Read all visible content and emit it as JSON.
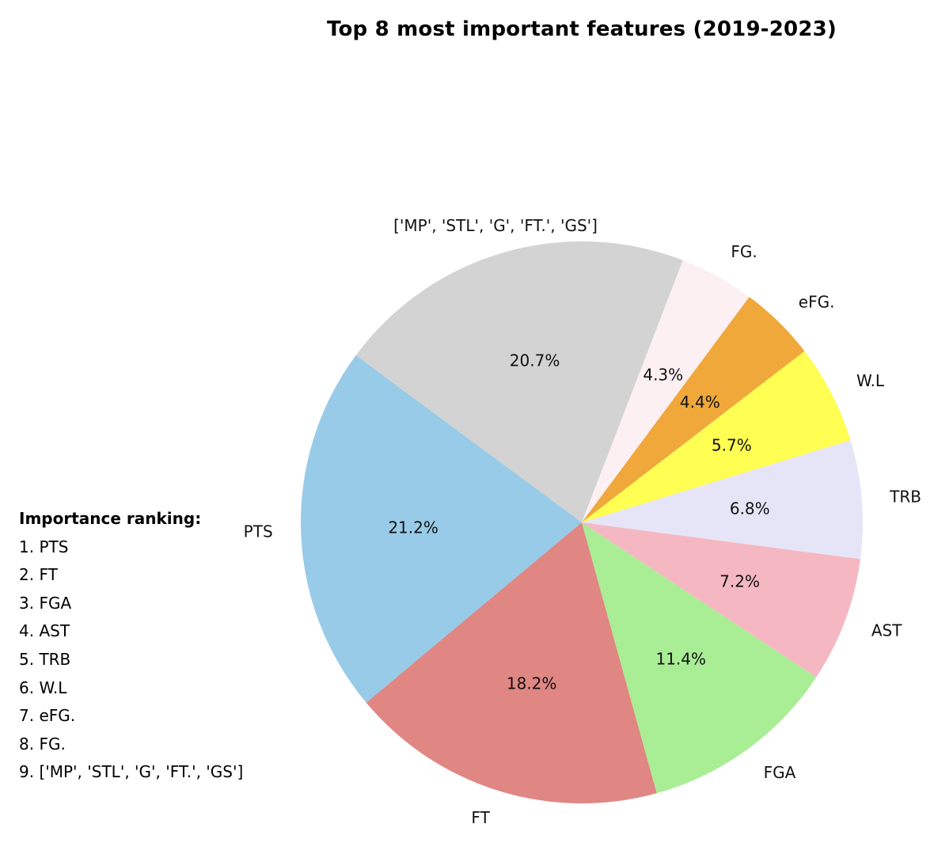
{
  "chart_data": {
    "type": "pie",
    "title": "Top 8 most important features (2019-2023)",
    "slices": [
      {
        "label": "PTS",
        "percent": 21.2,
        "color": "#98cbe8"
      },
      {
        "label": "FT",
        "percent": 18.2,
        "color": "#e08683"
      },
      {
        "label": "FGA",
        "percent": 11.4,
        "color": "#a9ed95"
      },
      {
        "label": "AST",
        "percent": 7.2,
        "color": "#f5b8c3"
      },
      {
        "label": "TRB",
        "percent": 6.8,
        "color": "#e6e5f7"
      },
      {
        "label": "W.L",
        "percent": 5.7,
        "color": "#fffe52"
      },
      {
        "label": "eFG.",
        "percent": 4.4,
        "color": "#f0a83b"
      },
      {
        "label": "FG.",
        "percent": 4.3,
        "color": "#fcf0f3"
      },
      {
        "label": "['MP', 'STL', 'G', 'FT.', 'GS']",
        "percent": 20.7,
        "color": "#d3d3d3"
      }
    ],
    "ranking": {
      "title": "Importance ranking:",
      "items": [
        "1. PTS",
        "2. FT",
        "3. FGA",
        "4. AST",
        "5. TRB",
        "6. W.L",
        "7. eFG.",
        "8. FG.",
        "9. ['MP', 'STL', 'G', 'FT.', 'GS']"
      ]
    }
  }
}
